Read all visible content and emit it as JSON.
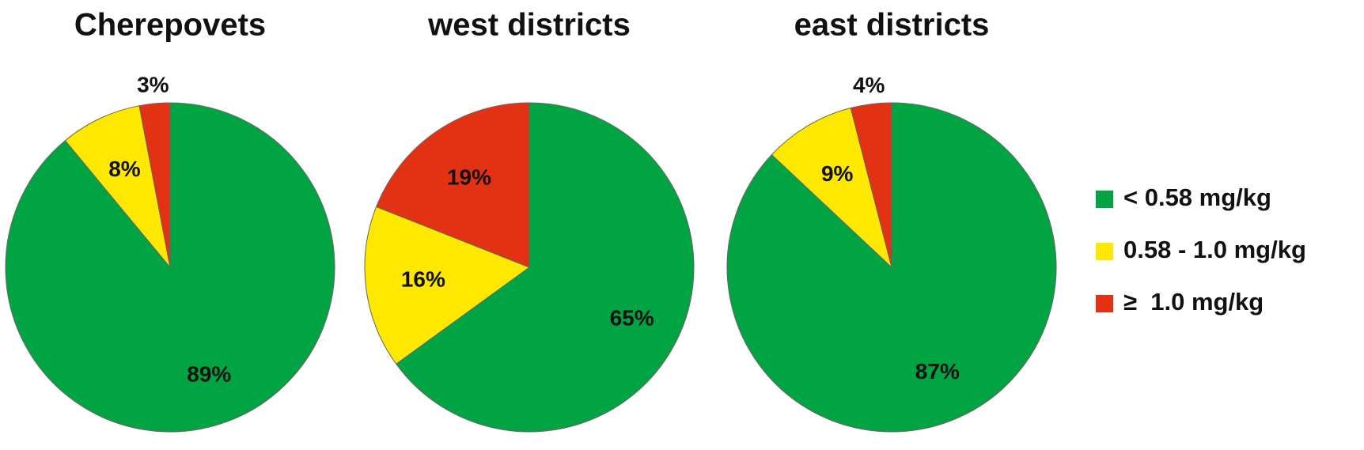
{
  "chart_data": [
    {
      "type": "pie",
      "title": "Cherepovets",
      "values": [
        89,
        8,
        3
      ],
      "value_labels": [
        "89%",
        "8%",
        "3%"
      ]
    },
    {
      "type": "pie",
      "title": "west districts",
      "values": [
        65,
        16,
        19
      ],
      "value_labels": [
        "65%",
        "16%",
        "19%"
      ]
    },
    {
      "type": "pie",
      "title": "east districts",
      "values": [
        87,
        9,
        4
      ],
      "value_labels": [
        "87%",
        "9%",
        "4%"
      ]
    }
  ],
  "legend": {
    "labels": [
      "< 0.58 mg/kg",
      "0.58 - 1.0 mg/kg",
      "≥  1.0 mg/kg"
    ],
    "colors": [
      "#00a443",
      "#ffe800",
      "#e33213"
    ],
    "position": "right"
  }
}
